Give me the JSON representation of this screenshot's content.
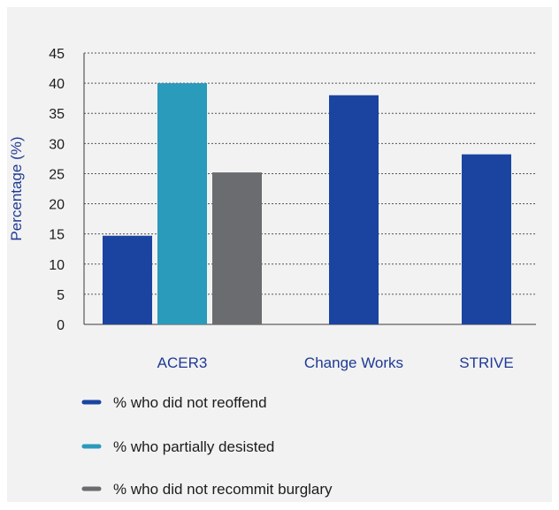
{
  "chart_data": {
    "type": "bar",
    "ylabel": "Percentage (%)",
    "ylim": [
      0,
      45
    ],
    "yticks": [
      0,
      5,
      10,
      15,
      20,
      25,
      30,
      35,
      40,
      45
    ],
    "grid": true,
    "legend_position": "bottom",
    "categories": [
      "ACER3",
      "Change Works",
      "STRIVE"
    ],
    "series": [
      {
        "name": "% who did not reoffend",
        "color": "#1a44a0",
        "values": [
          14.7,
          38,
          28.2
        ]
      },
      {
        "name": "% who partially desisted",
        "color": "#2a9bba",
        "values": [
          40,
          null,
          null
        ]
      },
      {
        "name": "% who did not recommit burglary",
        "color": "#6b6c6f",
        "values": [
          25.2,
          null,
          null
        ]
      }
    ]
  }
}
